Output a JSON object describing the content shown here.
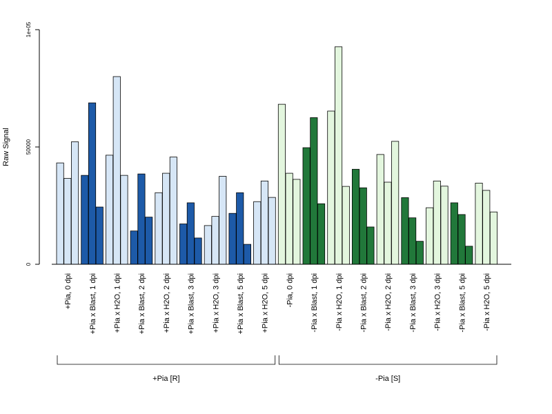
{
  "chart_data": {
    "type": "bar",
    "ylabel": "Raw Signal",
    "xlabel": "",
    "ylim": [
      0,
      100000
    ],
    "yticks": [
      {
        "value": 0,
        "label": "0"
      },
      {
        "value": 50000,
        "label": "50000"
      },
      {
        "value": 100000,
        "label": "1e+05"
      }
    ],
    "grid": false,
    "legend": "none",
    "bars_per_category": 3,
    "categories": [
      {
        "label": "+Pia, 0 dpi",
        "kind": "light-blue",
        "values": [
          43200,
          36600,
          52200
        ]
      },
      {
        "label": "+Pia x Blast, 1 dpi",
        "kind": "dark-blue",
        "values": [
          37900,
          68800,
          24400
        ]
      },
      {
        "label": "+Pia x H2O, 1 dpi",
        "kind": "light-blue",
        "values": [
          46500,
          80000,
          37900
        ]
      },
      {
        "label": "+Pia x Blast, 2 dpi",
        "kind": "dark-blue",
        "values": [
          14200,
          38500,
          20100
        ]
      },
      {
        "label": "+Pia x H2O, 2 dpi",
        "kind": "light-blue",
        "values": [
          30500,
          38800,
          45700
        ]
      },
      {
        "label": "+Pia x Blast, 3 dpi",
        "kind": "dark-blue",
        "values": [
          17200,
          26200,
          11200
        ]
      },
      {
        "label": "+Pia x H2O, 3 dpi",
        "kind": "light-blue",
        "values": [
          16500,
          20400,
          37500
        ]
      },
      {
        "label": "+Pia x Blast, 5 dpi",
        "kind": "dark-blue",
        "values": [
          21700,
          30500,
          8500
        ]
      },
      {
        "label": "+Pia x H2O, 5 dpi",
        "kind": "light-blue",
        "values": [
          26700,
          35500,
          28500
        ]
      },
      {
        "label": "-Pia, 0 dpi",
        "kind": "light-green",
        "values": [
          68200,
          38800,
          36200
        ]
      },
      {
        "label": "-Pia x Blast, 1 dpi",
        "kind": "dark-green",
        "values": [
          49700,
          62500,
          25800
        ]
      },
      {
        "label": "-Pia x H2O, 1 dpi",
        "kind": "light-green",
        "values": [
          65300,
          92700,
          33200
        ]
      },
      {
        "label": "-Pia x Blast, 2 dpi",
        "kind": "dark-green",
        "values": [
          40500,
          32600,
          15900
        ]
      },
      {
        "label": "-Pia x H2O, 2 dpi",
        "kind": "light-green",
        "values": [
          46800,
          35000,
          52400
        ]
      },
      {
        "label": "-Pia x Blast, 3 dpi",
        "kind": "dark-green",
        "values": [
          28400,
          19800,
          9800
        ]
      },
      {
        "label": "-Pia x H2O, 3 dpi",
        "kind": "light-green",
        "values": [
          24100,
          35500,
          33300
        ]
      },
      {
        "label": "-Pia x Blast, 5 dpi",
        "kind": "dark-green",
        "values": [
          26200,
          21200,
          7700
        ]
      },
      {
        "label": "-Pia x H2O, 5 dpi",
        "kind": "light-green",
        "values": [
          34600,
          31500,
          22300
        ]
      }
    ],
    "groups": [
      {
        "label": "+Pia [R]",
        "from_category": 0,
        "to_category": 8
      },
      {
        "label": "-Pia [S]",
        "from_category": 9,
        "to_category": 17
      }
    ],
    "colors": {
      "light-blue": "#d6e6f6",
      "dark-blue": "#1d5aa8",
      "light-green": "#e3f6de",
      "dark-green": "#21783a",
      "outline": "#000000"
    }
  }
}
